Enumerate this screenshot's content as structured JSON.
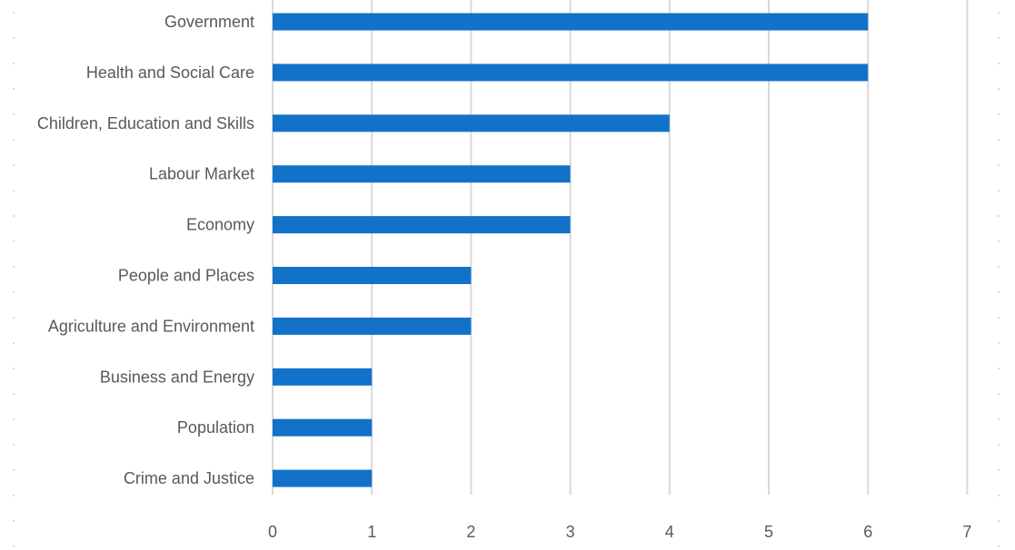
{
  "chart_data": {
    "type": "bar",
    "orientation": "horizontal",
    "title": "",
    "xlabel": "",
    "ylabel": "",
    "categories": [
      "Government",
      "Health and Social Care",
      "Children, Education and Skills",
      "Labour Market",
      "Economy",
      "People and Places",
      "Agriculture and Environment",
      "Business and Energy",
      "Population",
      "Crime and Justice"
    ],
    "values": [
      6,
      6,
      4,
      3,
      3,
      2,
      2,
      1,
      1,
      1
    ],
    "xlim": [
      0,
      7
    ],
    "xticks": [
      "0",
      "1",
      "2",
      "3",
      "4",
      "5",
      "6",
      "7"
    ],
    "grid": "vertical",
    "legend": "none",
    "colors": {
      "bar": "#1272c9",
      "grid": "#d9d9d9",
      "text": "#595959"
    }
  }
}
